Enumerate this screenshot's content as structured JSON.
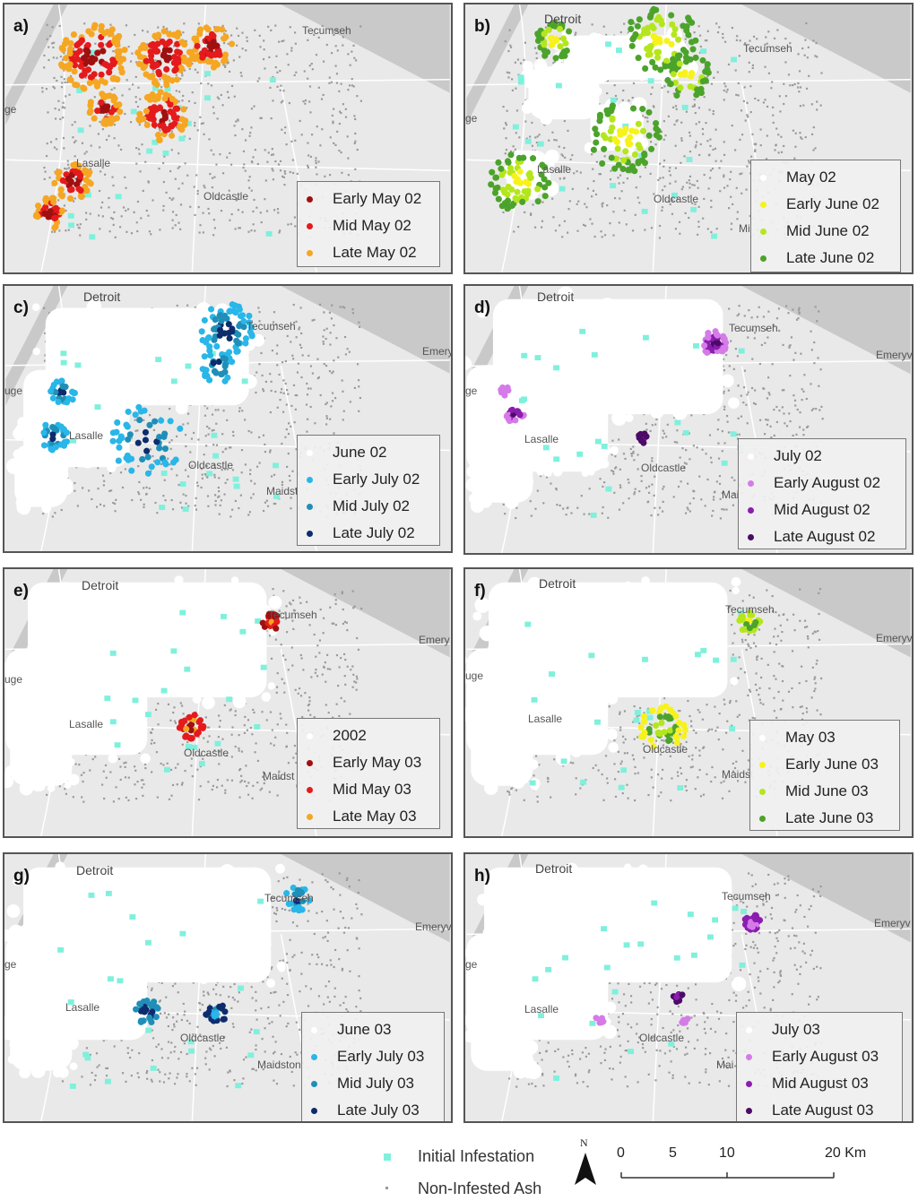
{
  "colors": {
    "initial": "#7ff0dc",
    "ash": "#9a9a9a",
    "white": "#ffffff",
    "darkred": "#a01010",
    "red": "#e41a1c",
    "orange": "#f5a623",
    "yellow": "#f7f21a",
    "lightgreen": "#b5e61d",
    "green": "#4ca32b",
    "lightblue": "#29b6e8",
    "midblue": "#1f8fb8",
    "darkblue": "#0d2c6e",
    "lightpurple": "#d57be8",
    "purple": "#8b1db0",
    "darkpurple": "#4b0b66"
  },
  "panels": [
    {
      "label": "a)",
      "places": [
        "Tecumseh",
        "Lasalle",
        "Oldcastle",
        "ge"
      ],
      "legend": [
        {
          "text": "Early May 02",
          "color": "#a01010"
        },
        {
          "text": "Mid May 02",
          "color": "#e41a1c"
        },
        {
          "text": "Late May 02",
          "color": "#f5a623"
        }
      ]
    },
    {
      "label": "b)",
      "places": [
        "Detroit",
        "Tecumseh",
        "Lasalle",
        "Oldcastle",
        "ge",
        "Mi"
      ],
      "legend": [
        {
          "text": "May 02",
          "color": "#ffffff"
        },
        {
          "text": "Early June 02",
          "color": "#f7f21a"
        },
        {
          "text": "Mid June 02",
          "color": "#b5e61d"
        },
        {
          "text": "Late June 02",
          "color": "#4ca32b"
        }
      ]
    },
    {
      "label": "c)",
      "places": [
        "Detroit",
        "Tecumseh",
        "Lasalle",
        "Oldcastle",
        "Emery",
        "Maidst",
        "uge"
      ],
      "legend": [
        {
          "text": "June 02",
          "color": "#ffffff"
        },
        {
          "text": "Early July 02",
          "color": "#29b6e8"
        },
        {
          "text": "Mid July 02",
          "color": "#1f8fb8"
        },
        {
          "text": "Late July 02",
          "color": "#0d2c6e"
        }
      ]
    },
    {
      "label": "d)",
      "places": [
        "Detroit",
        "Tecumseh",
        "Lasalle",
        "Oldcastle",
        "Emeryv",
        "Mai",
        "ge"
      ],
      "legend": [
        {
          "text": "July 02",
          "color": "#ffffff"
        },
        {
          "text": "Early August 02",
          "color": "#d57be8"
        },
        {
          "text": "Mid August 02",
          "color": "#8b1db0"
        },
        {
          "text": "Late August 02",
          "color": "#4b0b66"
        }
      ]
    },
    {
      "label": "e)",
      "places": [
        "Detroit",
        "Tecumseh",
        "Lasalle",
        "Oldcastle",
        "Emery",
        "Maidst",
        "uge"
      ],
      "legend": [
        {
          "text": "2002",
          "color": "#ffffff"
        },
        {
          "text": "Early May 03",
          "color": "#a01010"
        },
        {
          "text": "Mid May 03",
          "color": "#e41a1c"
        },
        {
          "text": "Late May 03",
          "color": "#f5a623"
        }
      ]
    },
    {
      "label": "f)",
      "places": [
        "Detroit",
        "Tecumseh",
        "Lasalle",
        "Oldcastle",
        "Emeryv",
        "Maidst",
        "uge"
      ],
      "legend": [
        {
          "text": "May 03",
          "color": "#ffffff"
        },
        {
          "text": "Early June 03",
          "color": "#f7f21a"
        },
        {
          "text": "Mid June 03",
          "color": "#b5e61d"
        },
        {
          "text": "Late June 03",
          "color": "#4ca32b"
        }
      ]
    },
    {
      "label": "g)",
      "places": [
        "Detroit",
        "Tecumseh",
        "Lasalle",
        "Oldcastle",
        "Emeryvi",
        "Maidston",
        "ge"
      ],
      "legend": [
        {
          "text": "June 03",
          "color": "#ffffff"
        },
        {
          "text": "Early July 03",
          "color": "#29b6e8"
        },
        {
          "text": "Mid July 03",
          "color": "#1f8fb8"
        },
        {
          "text": "Late July 03",
          "color": "#0d2c6e"
        }
      ]
    },
    {
      "label": "h)",
      "places": [
        "Detroit",
        "Tecumseh",
        "Lasalle",
        "Oldcastle",
        "Emeryv",
        "Mai",
        "ge"
      ],
      "legend": [
        {
          "text": "July 03",
          "color": "#ffffff"
        },
        {
          "text": "Early August 03",
          "color": "#d57be8"
        },
        {
          "text": "Mid August 03",
          "color": "#8b1db0"
        },
        {
          "text": "Late August 03",
          "color": "#4b0b66"
        }
      ]
    }
  ],
  "footer": {
    "initial_label": "Initial Infestation",
    "ash_label": "Non-Infested Ash",
    "north": "N",
    "scale": {
      "ticks": [
        "0",
        "5",
        "10",
        "20 Km"
      ]
    }
  }
}
